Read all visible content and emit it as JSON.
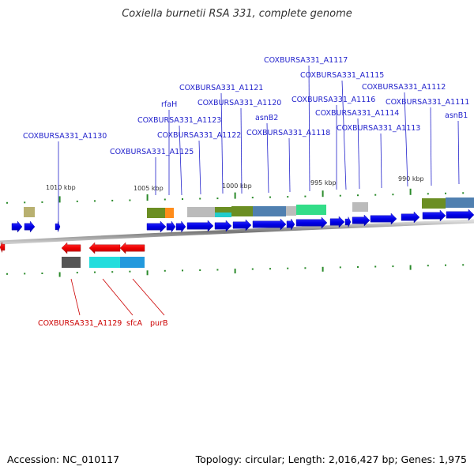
{
  "title": "Coxiella burnetii RSA 331, complete genome",
  "footer": {
    "accession": "Accession: NC_010117",
    "summary": "Topology: circular; Length: 2,016,427 bp; Genes: 1,975"
  },
  "colors": {
    "forward": "#0000ee",
    "reverse": "#ee0000",
    "forward_label": "#2222cc",
    "reverse_label": "#cc0000",
    "backbone": "#888888",
    "tick": "#2a8a2a"
  },
  "scale_labels": [
    "1010 kbp",
    "1005 kbp",
    "1000 kbp",
    "995 kbp",
    "990 kbp"
  ],
  "forward_labels": [
    "COXBURSA331_A1130",
    "COXBURSA331_A1125",
    "rfaH",
    "COXBURSA331_A1123",
    "COXBURSA331_A1122",
    "COXBURSA331_A1121",
    "COXBURSA331_A1120",
    "asnB2",
    "COXBURSA331_A1118",
    "COXBURSA331_A1117",
    "COXBURSA331_A1116",
    "COXBURSA331_A1115",
    "COXBURSA331_A1114",
    "COXBURSA331_A1113",
    "COXBURSA331_A1112",
    "COXBURSA331_A1111",
    "asnB1"
  ],
  "reverse_labels": [
    "COXBURSA331_A1129",
    "sfcA",
    "purB"
  ]
}
